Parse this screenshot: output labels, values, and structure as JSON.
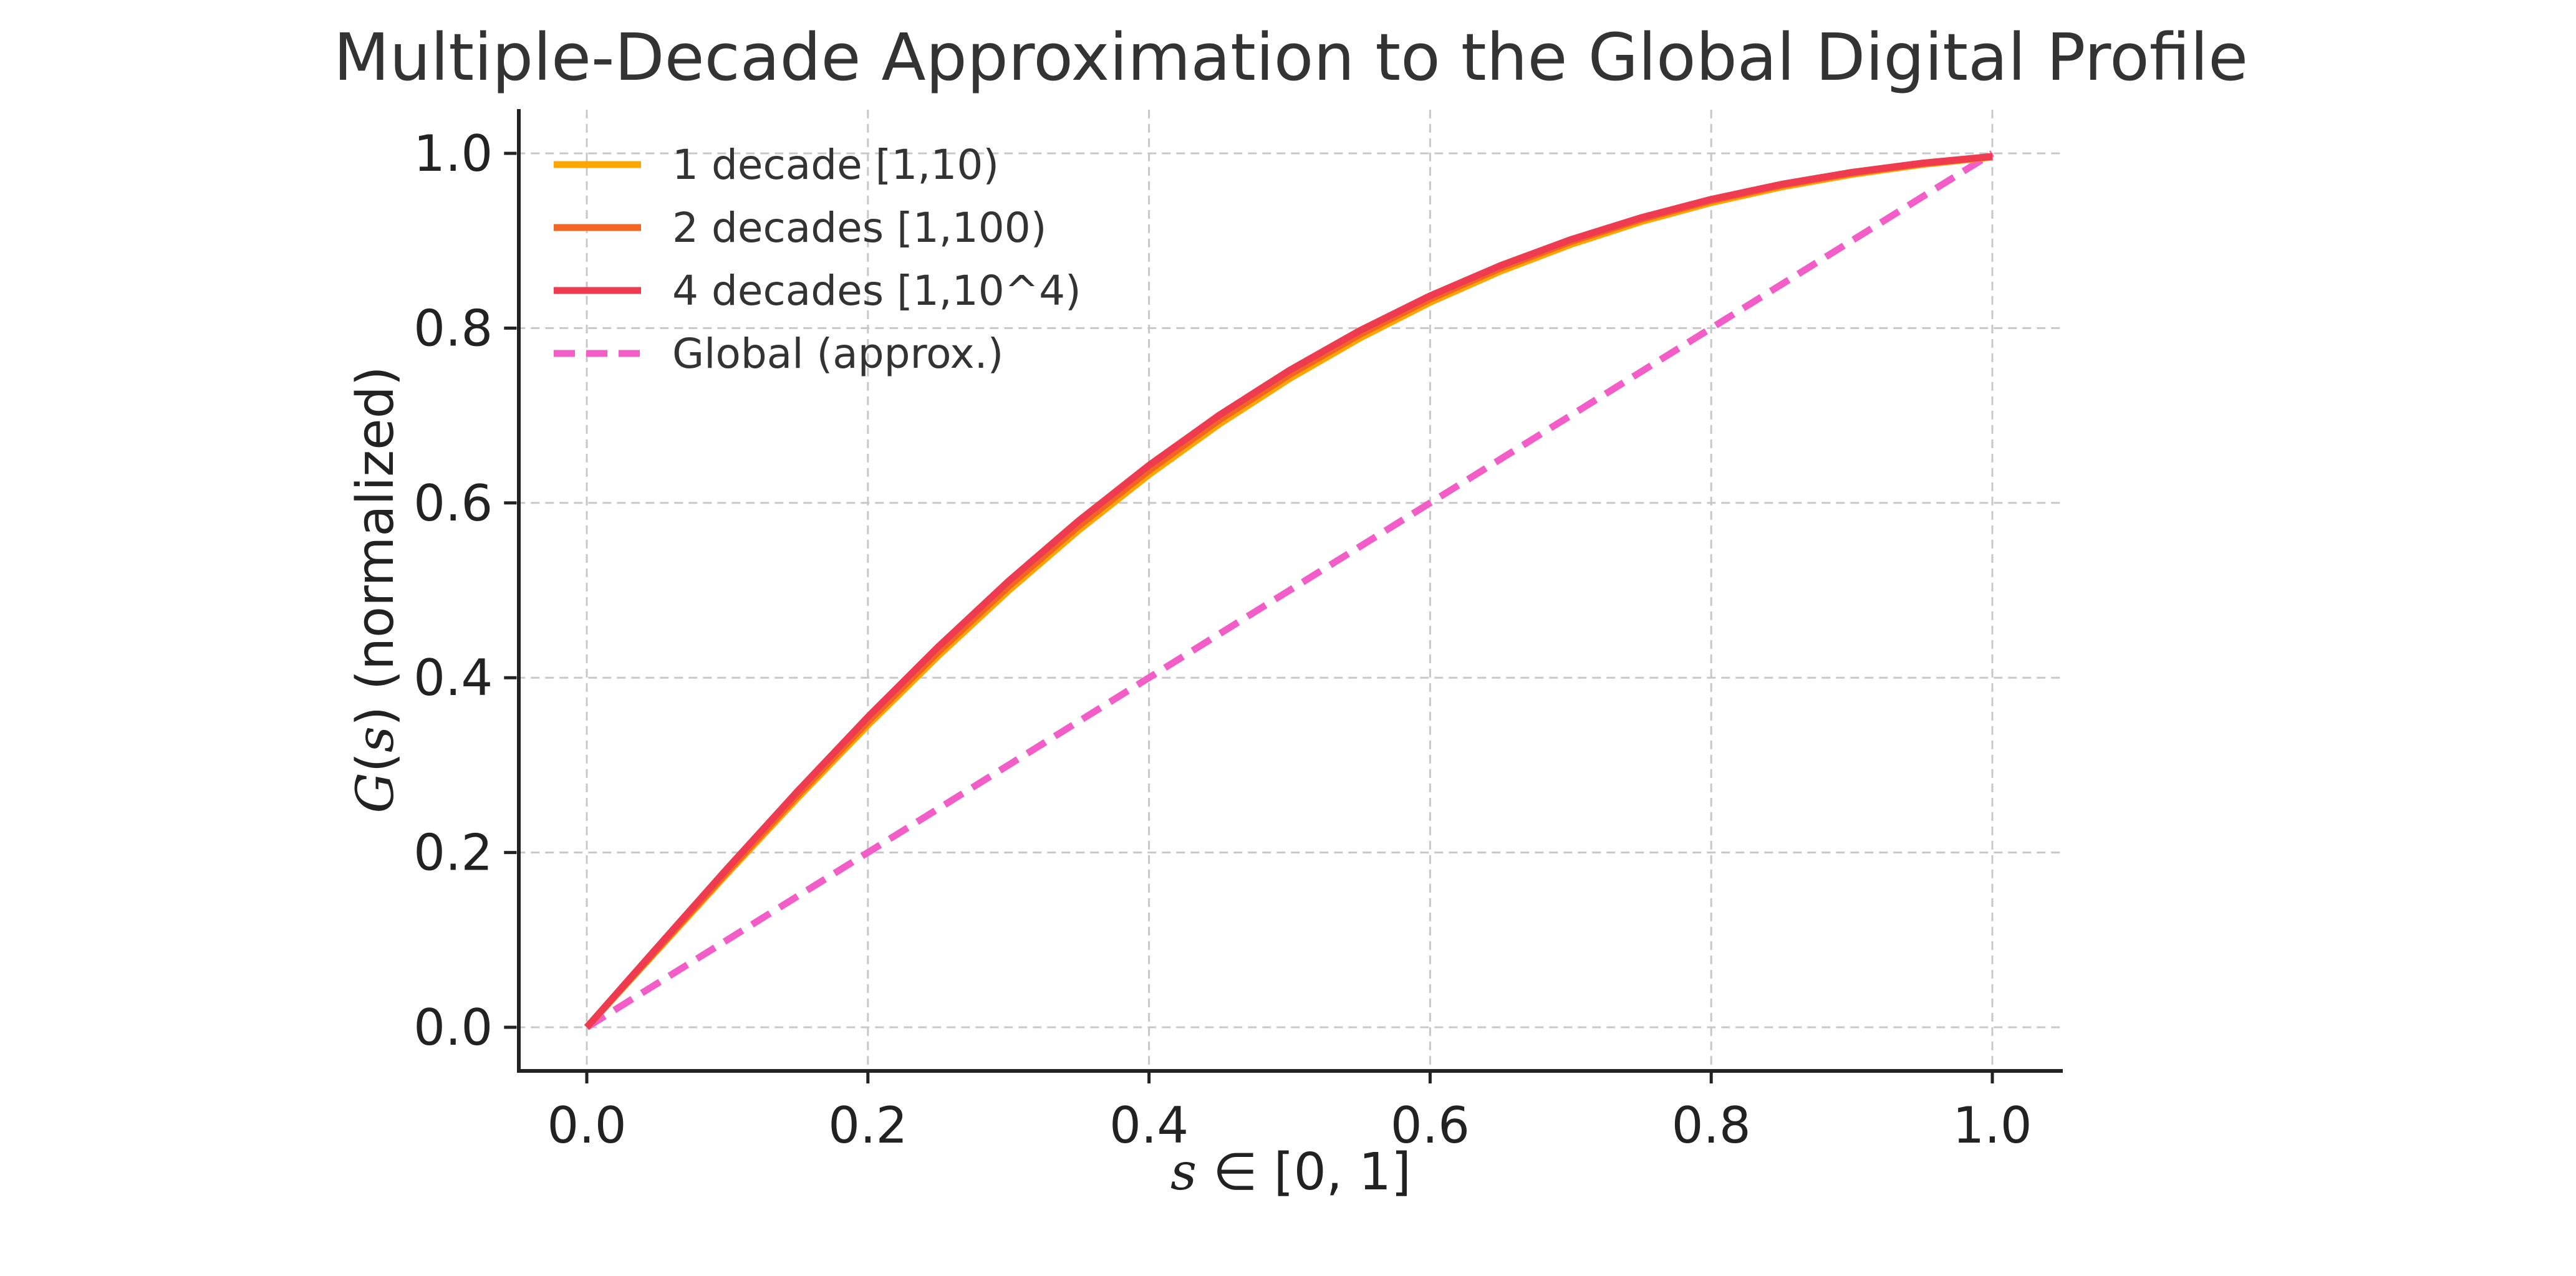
{
  "chart_data": {
    "type": "line",
    "title": "Multiple-Decade Approximation to the Global Digital Profile",
    "xlabel": {
      "italic": "s",
      "rest": " ∈ [0, 1]"
    },
    "ylabel": {
      "italic_1": "G",
      "plain_1": "(",
      "italic_2": "s",
      "plain_2": ") (normalized)"
    },
    "xlim": [
      -0.05,
      1.05
    ],
    "ylim": [
      -0.05,
      1.05
    ],
    "grid": true,
    "legend_position": "top-left",
    "x_ticks": [
      "0.0",
      "0.2",
      "0.4",
      "0.6",
      "0.8",
      "1.0"
    ],
    "y_ticks": [
      "0.0",
      "0.2",
      "0.4",
      "0.6",
      "0.8",
      "1.0"
    ],
    "x_tick_values": [
      0.0,
      0.2,
      0.4,
      0.6,
      0.8,
      1.0
    ],
    "y_tick_values": [
      0.0,
      0.2,
      0.4,
      0.6,
      0.8,
      1.0
    ],
    "x": [
      0.0,
      0.05,
      0.1,
      0.15,
      0.2,
      0.25,
      0.3,
      0.35,
      0.4,
      0.45,
      0.5,
      0.55,
      0.6,
      0.65,
      0.7,
      0.75,
      0.8,
      0.85,
      0.9,
      0.95,
      1.0
    ],
    "series": [
      {
        "name": "1 decade [1,10)",
        "color": "#FFA500",
        "dash": "solid",
        "values": [
          0.0,
          0.0879,
          0.1761,
          0.2625,
          0.3457,
          0.425,
          0.4996,
          0.5688,
          0.6324,
          0.6902,
          0.7422,
          0.7886,
          0.8295,
          0.8651,
          0.8957,
          0.9218,
          0.9436,
          0.9615,
          0.9759,
          0.9872,
          0.9957
        ]
      },
      {
        "name": "2 decades [1,100)",
        "color": "#F26522",
        "dash": "solid",
        "values": [
          0.0,
          0.0892,
          0.1784,
          0.2657,
          0.3497,
          0.4294,
          0.5043,
          0.5736,
          0.6372,
          0.695,
          0.7468,
          0.7928,
          0.8333,
          0.8686,
          0.8989,
          0.9246,
          0.9459,
          0.9634,
          0.9774,
          0.9882,
          0.9962
        ]
      },
      {
        "name": "4 decades [1,10^4)",
        "color": "#EE3B4F",
        "dash": "solid",
        "values": [
          0.0,
          0.0912,
          0.1818,
          0.2702,
          0.3551,
          0.4353,
          0.5104,
          0.5797,
          0.6431,
          0.7005,
          0.7518,
          0.7972,
          0.837,
          0.8716,
          0.9013,
          0.9264,
          0.9474,
          0.9646,
          0.9783,
          0.9888,
          0.9965
        ]
      },
      {
        "name": "Global (approx.)",
        "color": "#F25DC8",
        "dash": "dashed",
        "values": [
          0.0,
          0.05,
          0.1,
          0.15,
          0.2,
          0.25,
          0.3,
          0.35,
          0.4,
          0.45,
          0.5,
          0.55,
          0.6,
          0.65,
          0.7,
          0.75,
          0.8,
          0.85,
          0.9,
          0.95,
          1.0
        ]
      }
    ]
  }
}
